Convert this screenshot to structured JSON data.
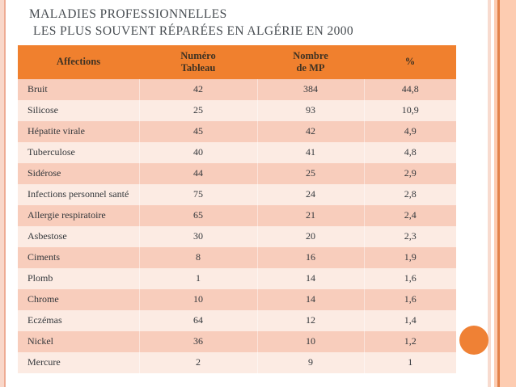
{
  "slide": {
    "title_line1": "MALADIES PROFESSIONNELLES",
    "title_line2": "LES PLUS SOUVENT RÉPARÉES EN ALGÉRIE  EN 2000"
  },
  "table": {
    "headers": {
      "affections": "Affections",
      "numero": "Numéro\nTableau",
      "nombre": "Nombre\nde MP",
      "pct": "%"
    },
    "rows": [
      [
        "Bruit",
        "42",
        "384",
        "44,8"
      ],
      [
        "Silicose",
        "25",
        "93",
        "10,9"
      ],
      [
        "Hépatite virale",
        "45",
        "42",
        "4,9"
      ],
      [
        "Tuberculose",
        "40",
        "41",
        "4,8"
      ],
      [
        "Sidérose",
        "44",
        "25",
        "2,9"
      ],
      [
        "Infections personnel santé",
        "75",
        "24",
        "2,8"
      ],
      [
        "Allergie respiratoire",
        "65",
        "21",
        "2,4"
      ],
      [
        "Asbestose",
        "30",
        "20",
        "2,3"
      ],
      [
        "Ciments",
        "8",
        "16",
        "1,9"
      ],
      [
        "Plomb",
        "1",
        "14",
        "1,6"
      ],
      [
        "Chrome",
        "10",
        "14",
        "1,6"
      ],
      [
        "Eczémas",
        "64",
        "12",
        "1,4"
      ],
      [
        "Nickel",
        "36",
        "10",
        "1,2"
      ],
      [
        "Mercure",
        "2",
        "9",
        "1"
      ]
    ]
  },
  "colors": {
    "header_bg": "#f0802e",
    "row_dark": "#f8cdbc",
    "row_light": "#fcebe3",
    "accent_circle": "#ef8135",
    "frame_band": "#fdccb1",
    "frame_line": "#e2824b",
    "title_text": "#474c51"
  }
}
